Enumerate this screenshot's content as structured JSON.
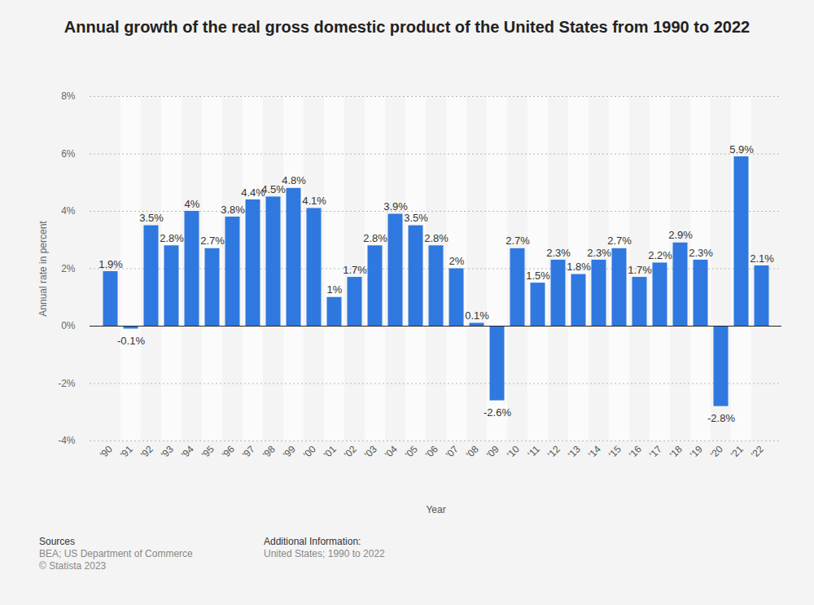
{
  "chart_data": {
    "type": "bar",
    "title": "Annual growth of the real gross domestic product of the United States from 1990 to 2022",
    "x_label": "Year",
    "y_label": "Annual rate in percent",
    "categories": [
      "'90",
      "'91",
      "'92",
      "'93",
      "'94",
      "'95",
      "'96",
      "'97",
      "'98",
      "'99",
      "'00",
      "'01",
      "'02",
      "'03",
      "'04",
      "'05",
      "'06",
      "'07",
      "'08",
      "'09",
      "'10",
      "'11",
      "'12",
      "'13",
      "'14",
      "'15",
      "'16",
      "'17",
      "'18",
      "'19",
      "'20",
      "'21",
      "'22"
    ],
    "values": [
      1.9,
      -0.1,
      3.5,
      2.8,
      4,
      2.7,
      3.8,
      4.4,
      4.5,
      4.8,
      4.1,
      1,
      1.7,
      2.8,
      3.9,
      3.5,
      2.8,
      2,
      0.1,
      -2.6,
      2.7,
      1.5,
      2.3,
      1.8,
      2.3,
      2.7,
      1.7,
      2.2,
      2.9,
      2.3,
      -2.8,
      5.9,
      2.1
    ],
    "value_labels": [
      "1.9%",
      "-0.1%",
      "3.5%",
      "2.8%",
      "4%",
      "2.7%",
      "3.8%",
      "4.4%",
      "4.5%",
      "4.8%",
      "4.1%",
      "1%",
      "1.7%",
      "2.8%",
      "3.9%",
      "3.5%",
      "2.8%",
      "2%",
      "0.1%",
      "-2.6%",
      "2.7%",
      "1.5%",
      "2.3%",
      "1.8%",
      "2.3%",
      "2.7%",
      "1.7%",
      "2.2%",
      "2.9%",
      "2.3%",
      "-2.8%",
      "5.9%",
      "2.1%"
    ],
    "color": "#2f78e0",
    "data_labels": true,
    "grid": true,
    "ylim": [
      -4,
      8
    ],
    "yticks": [
      {
        "value": -4,
        "label": "-4%"
      },
      {
        "value": -2,
        "label": "-2%"
      },
      {
        "value": 0,
        "label": "0%"
      },
      {
        "value": 2,
        "label": "2%"
      },
      {
        "value": 4,
        "label": "4%"
      },
      {
        "value": 6,
        "label": "6%"
      },
      {
        "value": 8,
        "label": "8%"
      }
    ],
    "sources_title": "Sources",
    "sources": [
      "BEA; US Department of Commerce",
      "© Statista 2023"
    ],
    "additional_info_title": "Additional Information:",
    "additional_info": [
      "United States; 1990 to 2022"
    ]
  }
}
